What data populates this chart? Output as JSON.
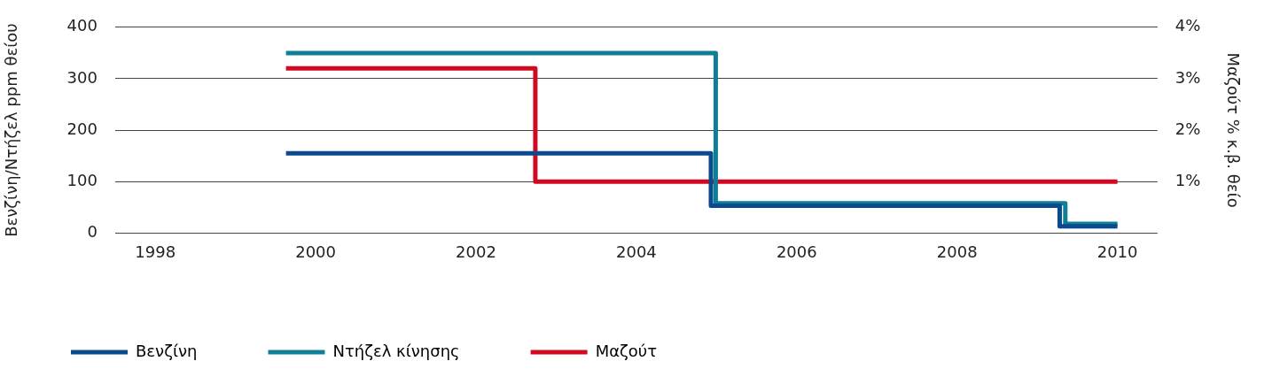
{
  "chart_data": {
    "type": "step",
    "ylabel": "Βενζίνη/Ντήζελ ppm θείου",
    "y2label": "Μαζούτ % κ.β. θείο",
    "xlim": [
      1997.5,
      2010.5
    ],
    "xticks": [
      1998,
      2000,
      2002,
      2004,
      2006,
      2008,
      2010
    ],
    "ylim": [
      0,
      400
    ],
    "yticks": [
      0,
      100,
      200,
      300,
      400
    ],
    "y2lim": [
      0,
      4
    ],
    "y2ticks": [
      {
        "value": 1,
        "label": "1%"
      },
      {
        "value": 2,
        "label": "2%"
      },
      {
        "value": 3,
        "label": "3%"
      },
      {
        "value": 4,
        "label": "4%"
      }
    ],
    "grid": "y",
    "legend": "bottom",
    "marker": "none",
    "line_style": "solid",
    "series": [
      {
        "name": "Βενζίνη",
        "color": "#0b4a8f",
        "x": [
          1999.63,
          2004.93,
          2009.28,
          2010
        ],
        "values": [
          155,
          53,
          13,
          13
        ]
      },
      {
        "name": "Ντήζελ κίνησης",
        "color": "#0e7f94",
        "x": [
          1999.63,
          2004.99,
          2009.35,
          2010
        ],
        "values": [
          350,
          58,
          18,
          18
        ]
      },
      {
        "name": "Μαζούτ",
        "color": "#d10a22",
        "axis": "y2",
        "x": [
          1999.63,
          2002.74,
          2010
        ],
        "values": [
          3.2,
          1.0,
          1.0
        ]
      }
    ]
  }
}
